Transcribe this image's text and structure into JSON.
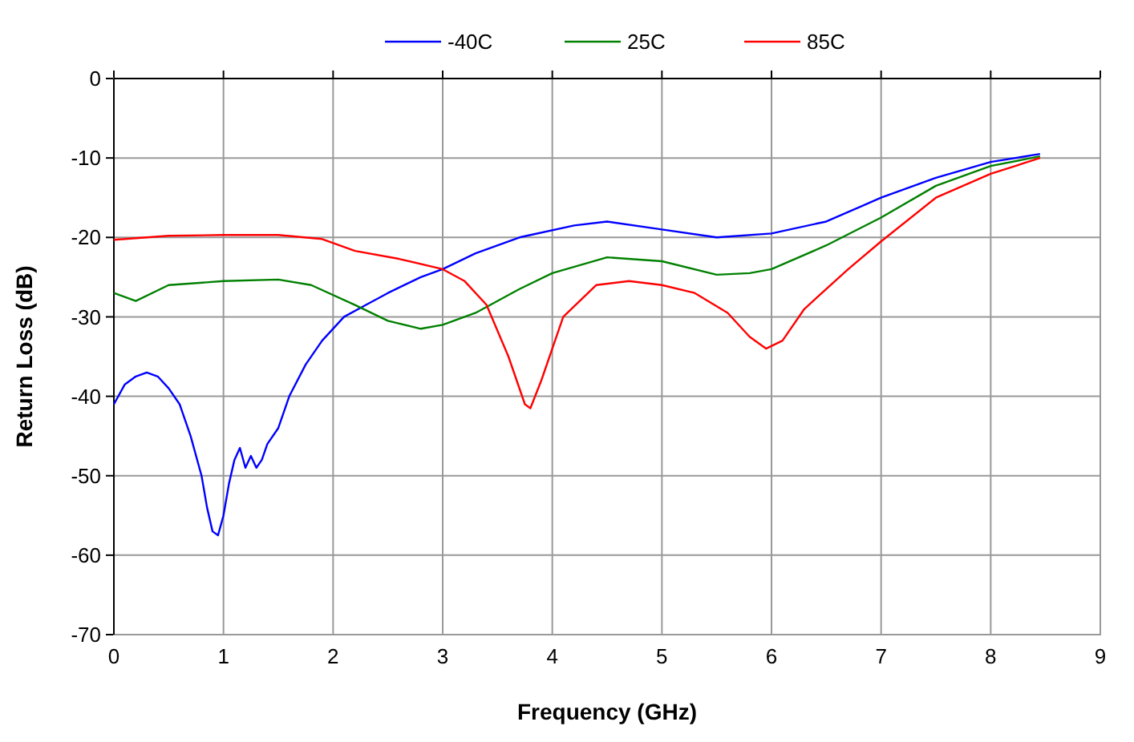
{
  "chart_data": {
    "type": "line",
    "xlabel": "Frequency (GHz)",
    "ylabel": "Return Loss (dB)",
    "xlim": [
      0,
      9
    ],
    "xticks": [
      0,
      1,
      2,
      3,
      4,
      5,
      6,
      7,
      8,
      9
    ],
    "ylim": [
      -70,
      0
    ],
    "yticks": [
      -70,
      -60,
      -50,
      -40,
      -30,
      -20,
      -10,
      0
    ],
    "grid": true,
    "legend": "top",
    "marker": "none",
    "line_style": "solid",
    "series": [
      {
        "name": "-40C",
        "color": "#0000ff",
        "x": [
          0,
          0.1,
          0.2,
          0.3,
          0.4,
          0.5,
          0.6,
          0.7,
          0.8,
          0.85,
          0.9,
          0.95,
          1.0,
          1.05,
          1.1,
          1.15,
          1.2,
          1.25,
          1.3,
          1.35,
          1.4,
          1.5,
          1.6,
          1.75,
          1.9,
          2.1,
          2.3,
          2.5,
          2.8,
          3.0,
          3.3,
          3.7,
          4.2,
          4.5,
          5.0,
          5.5,
          6.0,
          6.5,
          7.0,
          7.5,
          8.0,
          8.45
        ],
        "values": [
          -41,
          -38.5,
          -37.5,
          -37,
          -37.5,
          -39,
          -41,
          -45,
          -50,
          -54,
          -57,
          -57.5,
          -55,
          -51,
          -48,
          -46.5,
          -49,
          -47.5,
          -49,
          -48,
          -46,
          -44,
          -40,
          -36,
          -33,
          -30,
          -28.5,
          -27,
          -25,
          -24,
          -22,
          -20,
          -18.5,
          -18,
          -19,
          -20,
          -19.5,
          -18,
          -15,
          -12.5,
          -10.5,
          -9.5
        ]
      },
      {
        "name": "25C",
        "color": "#008000",
        "x": [
          0,
          0.2,
          0.5,
          1.0,
          1.5,
          1.8,
          2.2,
          2.5,
          2.8,
          3.0,
          3.3,
          3.7,
          4.0,
          4.5,
          5.0,
          5.5,
          5.8,
          6.0,
          6.5,
          7.0,
          7.5,
          8.0,
          8.45
        ],
        "values": [
          -27,
          -28,
          -26,
          -25.5,
          -25.3,
          -26,
          -28.5,
          -30.5,
          -31.5,
          -31,
          -29.5,
          -26.5,
          -24.5,
          -22.5,
          -23,
          -24.7,
          -24.5,
          -24,
          -21,
          -17.5,
          -13.5,
          -11,
          -9.8
        ]
      },
      {
        "name": "85C",
        "color": "#ff0000",
        "x": [
          0,
          0.5,
          1.0,
          1.5,
          1.9,
          2.2,
          2.6,
          3.0,
          3.2,
          3.4,
          3.6,
          3.75,
          3.8,
          3.9,
          4.1,
          4.4,
          4.7,
          5.0,
          5.3,
          5.6,
          5.8,
          5.95,
          6.1,
          6.3,
          6.7,
          7.0,
          7.5,
          8.0,
          8.45
        ],
        "values": [
          -20.3,
          -19.8,
          -19.7,
          -19.7,
          -20.2,
          -21.7,
          -22.7,
          -24,
          -25.5,
          -28.5,
          -35,
          -41,
          -41.5,
          -38,
          -30,
          -26,
          -25.5,
          -26,
          -27,
          -29.5,
          -32.5,
          -34,
          -33,
          -29,
          -24,
          -20.5,
          -15,
          -12,
          -10
        ]
      }
    ]
  }
}
